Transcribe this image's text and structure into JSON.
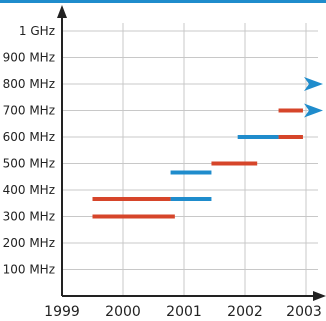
{
  "chart_data": {
    "type": "timeline-bar",
    "x": {
      "min": 1999,
      "max": 2003,
      "ticks": [
        "1999",
        "2000",
        "2001",
        "2002",
        "2003"
      ]
    },
    "y": {
      "min": 0,
      "max": 1000,
      "unit": "MHz",
      "ticks": [
        {
          "value": 100,
          "label": "100 MHz"
        },
        {
          "value": 200,
          "label": "200 MHz"
        },
        {
          "value": 300,
          "label": "300 MHz"
        },
        {
          "value": 400,
          "label": "400 MHz"
        },
        {
          "value": 500,
          "label": "500 MHz"
        },
        {
          "value": 600,
          "label": "600 MHz"
        },
        {
          "value": 700,
          "label": "700 MHz"
        },
        {
          "value": 800,
          "label": "800 MHz"
        },
        {
          "value": 900,
          "label": "900 MHz"
        },
        {
          "value": 1000,
          "label": "1 GHz"
        }
      ]
    },
    "grid": true,
    "colors": {
      "red": "#d6452a",
      "blue": "#1f8ccc",
      "axis": "#222222",
      "grid": "#c8c8c8",
      "top_band": "#1f8ccc"
    },
    "series": [
      {
        "color": "red",
        "segments": [
          {
            "y": 300,
            "x_start": 1999.5,
            "x_end": 2000.85
          },
          {
            "y": 366,
            "x_start": 1999.5,
            "x_end": 2000.78
          },
          {
            "y": 500,
            "x_start": 2001.45,
            "x_end": 2002.2
          },
          {
            "y": 600,
            "x_start": 2002.55,
            "x_end": 2002.95
          },
          {
            "y": 700,
            "x_start": 2002.55,
            "x_end": 2002.95
          }
        ]
      },
      {
        "color": "blue",
        "segments": [
          {
            "y": 366,
            "x_start": 2000.78,
            "x_end": 2001.45
          },
          {
            "y": 466,
            "x_start": 2000.78,
            "x_end": 2001.45
          },
          {
            "y": 600,
            "x_start": 2001.88,
            "x_end": 2002.55
          }
        ]
      }
    ],
    "arrows": [
      {
        "y": 700,
        "x": 2003.0,
        "color": "blue"
      },
      {
        "y": 800,
        "x": 2003.0,
        "color": "blue"
      }
    ]
  }
}
